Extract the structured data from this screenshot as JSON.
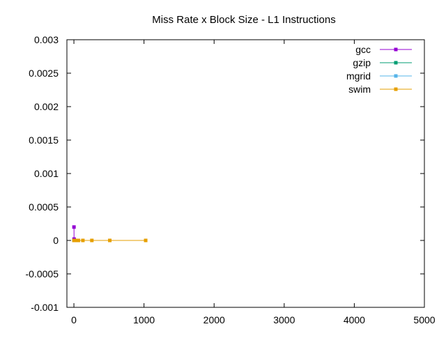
{
  "chart_data": {
    "type": "line",
    "title": "Miss Rate x Block Size - L1 Instructions",
    "xlabel": "",
    "ylabel": "",
    "xlim": [
      -100,
      5000
    ],
    "ylim": [
      -0.001,
      0.003
    ],
    "xticks": [
      0,
      1000,
      2000,
      3000,
      4000,
      5000
    ],
    "xtick_labels": [
      "0",
      "1000",
      "2000",
      "3000",
      "4000",
      "5000"
    ],
    "yticks": [
      -0.001,
      -0.0005,
      0,
      0.0005,
      0.001,
      0.0015,
      0.002,
      0.0025,
      0.003
    ],
    "ytick_labels": [
      "-0.001",
      "-0.0005",
      "0",
      "0.0005",
      "0.001",
      "0.0015",
      "0.002",
      "0.0025",
      "0.003"
    ],
    "grid": false,
    "legend_position": "top-right",
    "series": [
      {
        "name": "gcc",
        "color": "#9400d3",
        "marker": "square",
        "points": [
          [
            1,
            0.0002
          ],
          [
            2,
            2e-05
          ],
          [
            4,
            1e-05
          ],
          [
            8,
            0.0
          ],
          [
            16,
            0.0
          ]
        ]
      },
      {
        "name": "gzip",
        "color": "#009e73",
        "marker": "square",
        "points": [
          [
            1,
            0.0
          ],
          [
            2,
            0.0
          ],
          [
            4,
            0.0
          ],
          [
            8,
            0.0
          ],
          [
            16,
            0.0
          ]
        ]
      },
      {
        "name": "mgrid",
        "color": "#56b4e9",
        "marker": "square",
        "points": [
          [
            1,
            0.0
          ],
          [
            2,
            0.0
          ],
          [
            4,
            0.0
          ],
          [
            8,
            0.0
          ],
          [
            16,
            0.0
          ]
        ]
      },
      {
        "name": "swim",
        "color": "#e69f00",
        "marker": "square",
        "points": [
          [
            1,
            0.0
          ],
          [
            2,
            0.0
          ],
          [
            4,
            0.0
          ],
          [
            8,
            0.0
          ],
          [
            16,
            0.0
          ],
          [
            32,
            0.0
          ],
          [
            64,
            0.0
          ],
          [
            128,
            0.0
          ],
          [
            256,
            0.0
          ],
          [
            512,
            0.0
          ],
          [
            1024,
            0.0
          ]
        ]
      }
    ]
  }
}
